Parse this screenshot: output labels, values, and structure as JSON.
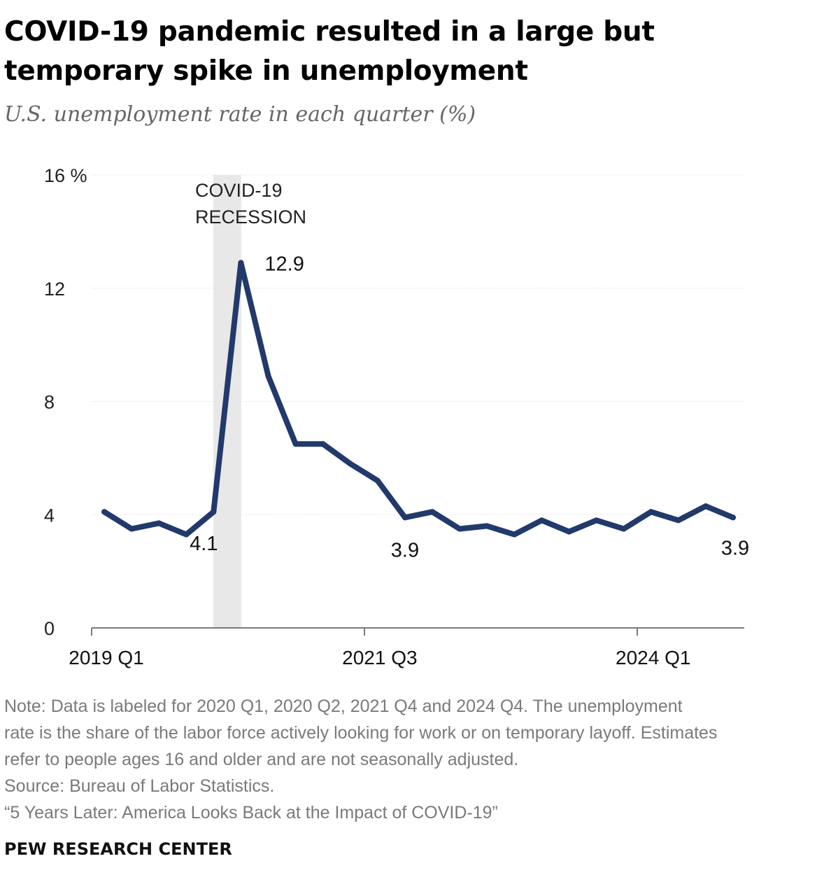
{
  "title": "COVID-19 pandemic resulted in a large but temporary spike in unemployment",
  "subtitle": "U.S. unemployment rate in each quarter (%)",
  "colors": {
    "line": "#22396b",
    "recession_band": "#e8e8e8",
    "gridline": "#e6e6e6",
    "axis": "#7a7a7a",
    "note_text": "#7a7a7a",
    "subtitle_text": "#666666"
  },
  "chart_data": {
    "type": "line",
    "title": "COVID-19 pandemic resulted in a large but temporary spike in unemployment",
    "subtitle": "U.S. unemployment rate in each quarter (%)",
    "xlabel": "",
    "ylabel": "",
    "ylim": [
      0,
      16
    ],
    "yticks": [
      0,
      4,
      8,
      12,
      16
    ],
    "ytick_labels": [
      "0",
      "4",
      "8",
      "12",
      "16 %"
    ],
    "grid": true,
    "x": [
      "2019 Q1",
      "2019 Q2",
      "2019 Q3",
      "2019 Q4",
      "2020 Q1",
      "2020 Q2",
      "2020 Q3",
      "2020 Q4",
      "2021 Q1",
      "2021 Q2",
      "2021 Q3",
      "2021 Q4",
      "2022 Q1",
      "2022 Q2",
      "2022 Q3",
      "2022 Q4",
      "2023 Q1",
      "2023 Q2",
      "2023 Q3",
      "2023 Q4",
      "2024 Q1",
      "2024 Q2",
      "2024 Q3",
      "2024 Q4"
    ],
    "xtick_labels": [
      {
        "label": "2019 Q1",
        "index": 0
      },
      {
        "label": "2021 Q3",
        "index": 10
      },
      {
        "label": "2024 Q1",
        "index": 20
      }
    ],
    "series": [
      {
        "name": "U.S. unemployment rate",
        "values": [
          4.1,
          3.5,
          3.7,
          3.3,
          4.1,
          12.9,
          8.9,
          6.5,
          6.5,
          5.8,
          5.2,
          3.9,
          4.1,
          3.5,
          3.6,
          3.3,
          3.8,
          3.4,
          3.8,
          3.5,
          4.1,
          3.8,
          4.3,
          3.9
        ]
      }
    ],
    "data_labels": [
      {
        "index": 4,
        "text": "4.1"
      },
      {
        "index": 5,
        "text": "12.9"
      },
      {
        "index": 11,
        "text": "3.9"
      },
      {
        "index": 23,
        "text": "3.9"
      }
    ],
    "annotations": [
      {
        "type": "shaded_band",
        "x_start": "2020 Q1",
        "x_end": "2020 Q2",
        "lines": [
          "COVID-19",
          "RECESSION"
        ]
      }
    ]
  },
  "notes": {
    "note_lines": [
      "Note: Data is labeled for 2020 Q1, 2020 Q2, 2021 Q4 and 2024 Q4. The unemployment",
      "rate is the share of the labor force actively looking for work or on temporary layoff. Estimates",
      "refer to people ages 16 and older and are not seasonally adjusted."
    ],
    "source": "Source: Bureau of Labor Statistics.",
    "citation": "“5 Years Later: America Looks Back at the Impact of COVID-19”"
  },
  "brand": "PEW RESEARCH CENTER"
}
